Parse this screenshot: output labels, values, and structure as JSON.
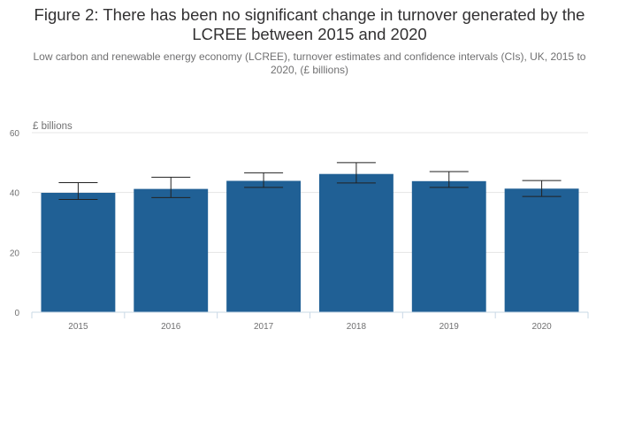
{
  "figure": {
    "title": "Figure 2: There has been no significant change in turnover generated by the LCREE between 2015 and 2020",
    "subtitle": "Low carbon and renewable energy economy (LCREE), turnover estimates and confidence intervals (CIs), UK, 2015 to 2020, (£ billions)"
  },
  "chart_data": {
    "type": "bar",
    "title": "Figure 2: There has been no significant change in turnover generated by the LCREE between 2015 and 2020",
    "subtitle": "Low carbon and renewable energy economy (LCREE), turnover estimates and confidence intervals (CIs), UK, 2015 to 2020, (£ billions)",
    "units_label": "£ billions",
    "xlabel": "",
    "ylabel": "",
    "categories": [
      "2015",
      "2016",
      "2017",
      "2018",
      "2019",
      "2020"
    ],
    "values": [
      39.9,
      41.2,
      43.9,
      46.2,
      43.8,
      41.3
    ],
    "ci_lower": [
      37.7,
      38.3,
      41.7,
      43.2,
      41.7,
      38.7
    ],
    "ci_upper": [
      43.3,
      45.1,
      46.6,
      50.0,
      47.0,
      44.0
    ],
    "ylim": [
      0,
      60
    ],
    "yticks": [
      0,
      20,
      40,
      60
    ],
    "grid": true,
    "legend": "none",
    "colors": {
      "bar": "#206095",
      "error_bar": "#222222",
      "grid": "#e5e5e5",
      "axis": "#c9d8e6",
      "tick_label": "#707071"
    }
  }
}
